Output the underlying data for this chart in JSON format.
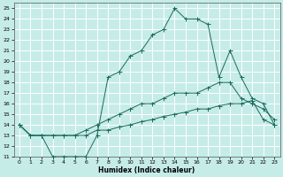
{
  "xlabel": "Humidex (Indice chaleur)",
  "ylabel": "",
  "bg_color": "#c6ece8",
  "grid_color": "#ffffff",
  "line_color": "#1a6b5a",
  "xlim": [
    -0.5,
    23.5
  ],
  "ylim": [
    11,
    25.5
  ],
  "x_ticks": [
    0,
    1,
    2,
    3,
    4,
    5,
    6,
    7,
    8,
    9,
    10,
    11,
    12,
    13,
    14,
    15,
    16,
    17,
    18,
    19,
    20,
    21,
    22,
    23
  ],
  "y_ticks": [
    11,
    12,
    13,
    14,
    15,
    16,
    17,
    18,
    19,
    20,
    21,
    22,
    23,
    24,
    25
  ],
  "curve1_x": [
    0,
    1,
    2,
    3,
    4,
    5,
    6,
    7,
    8,
    9,
    10,
    11,
    12,
    13,
    14,
    15,
    16,
    17,
    18,
    19,
    20,
    21,
    22,
    23
  ],
  "curve1_y": [
    14.0,
    13.0,
    13.0,
    11.0,
    11.0,
    11.0,
    11.0,
    13.0,
    18.5,
    19.0,
    20.5,
    21.0,
    22.5,
    23.0,
    25.0,
    24.0,
    24.0,
    23.5,
    18.5,
    21.0,
    18.5,
    16.5,
    16.0,
    14.0
  ],
  "curve2_x": [
    0,
    1,
    2,
    3,
    4,
    5,
    6,
    7,
    8,
    9,
    10,
    11,
    12,
    13,
    14,
    15,
    16,
    17,
    18,
    19,
    20,
    21,
    22,
    23
  ],
  "curve2_y": [
    14.0,
    13.0,
    13.0,
    13.0,
    13.0,
    13.0,
    13.5,
    14.0,
    14.5,
    15.0,
    15.5,
    16.0,
    16.0,
    16.5,
    17.0,
    17.0,
    17.0,
    17.5,
    18.0,
    18.0,
    16.5,
    16.0,
    15.5,
    14.5
  ],
  "curve3_x": [
    0,
    1,
    2,
    3,
    4,
    5,
    6,
    7,
    8,
    9,
    10,
    11,
    12,
    13,
    14,
    15,
    16,
    17,
    18,
    19,
    20,
    21,
    22,
    23
  ],
  "curve3_y": [
    14.0,
    13.0,
    13.0,
    13.0,
    13.0,
    13.0,
    13.0,
    13.5,
    13.5,
    13.8,
    14.0,
    14.3,
    14.5,
    14.8,
    15.0,
    15.2,
    15.5,
    15.5,
    15.8,
    16.0,
    16.0,
    16.3,
    14.5,
    14.0
  ]
}
